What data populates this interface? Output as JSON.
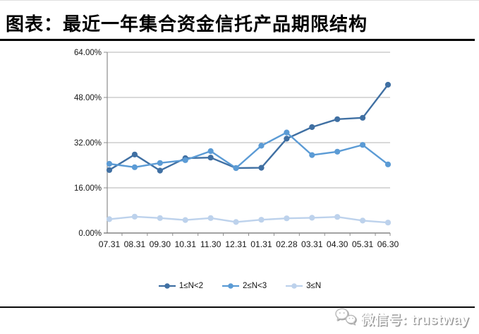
{
  "header": {
    "title": "图表：最近一年集合资金信托产品期限结构"
  },
  "chart_data": {
    "type": "line",
    "title": "最近一年集合资金信托产品期限结构",
    "xlabel": "",
    "ylabel": "",
    "categories": [
      "07.31",
      "08.31",
      "09.30",
      "10.31",
      "11.30",
      "12.31",
      "01.31",
      "02.28",
      "03.31",
      "04.30",
      "05.31",
      "06.30"
    ],
    "series": [
      {
        "name": "1≤N<2",
        "color": "#4070A3",
        "values": [
          22.3,
          27.8,
          22.1,
          26.5,
          26.7,
          23.0,
          23.1,
          33.4,
          37.5,
          40.3,
          40.8,
          52.5
        ]
      },
      {
        "name": "2≤N<3",
        "color": "#5B9BD5",
        "values": [
          24.5,
          23.3,
          24.8,
          25.8,
          29.0,
          23.0,
          30.9,
          35.6,
          27.6,
          28.8,
          31.2,
          24.3
        ]
      },
      {
        "name": "3≤N",
        "color": "#BDD2EC",
        "values": [
          4.9,
          5.8,
          5.3,
          4.6,
          5.3,
          3.9,
          4.7,
          5.2,
          5.4,
          5.7,
          4.4,
          3.7
        ]
      }
    ],
    "ylim": [
      0,
      64
    ],
    "ytick_step": 16,
    "ytick_labels": [
      "0.00%",
      "16.00%",
      "32.00%",
      "48.00%",
      "64.00%"
    ],
    "grid": true,
    "legend_position": "bottom",
    "colors": {
      "gridline": "#b3b3b3",
      "y_axis": "#8c8c8c",
      "x_axis": "#6b6b6b",
      "tick": "#8c8c8c",
      "label": "#161616"
    }
  },
  "watermark": {
    "label": "微信号: trustway",
    "icon": "wechat-icon"
  }
}
